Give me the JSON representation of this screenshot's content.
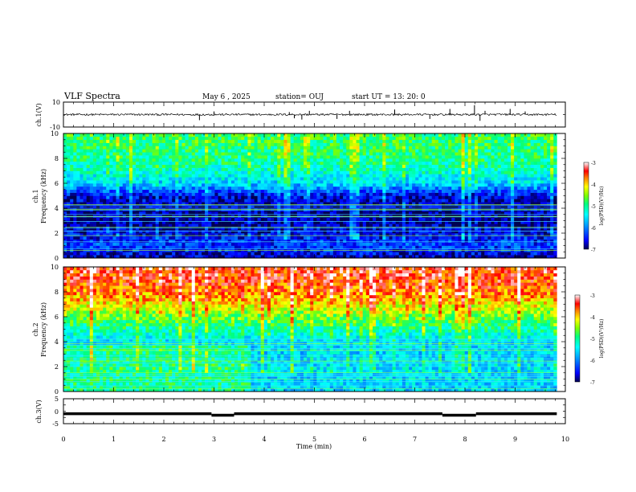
{
  "header": {
    "title": "VLF Spectra",
    "date": "May 6  , 2025",
    "station": "station= OUJ",
    "start": "start  UT  =   13: 20: 0"
  },
  "chart_data": [
    {
      "type": "line",
      "name": "ch1-waveform",
      "ylabel": "ch.1(V)",
      "ylim": [
        -10,
        10
      ],
      "yticks": [
        "10",
        "-10"
      ],
      "xlim": [
        0,
        10
      ],
      "baseline": 0,
      "noise_amplitude": 0.8,
      "spikes": [
        {
          "t": 2.71,
          "v": -4.5
        },
        {
          "t": 3.0,
          "v": 2.5
        },
        {
          "t": 4.5,
          "v": 2.0
        },
        {
          "t": 4.6,
          "v": -3.0
        },
        {
          "t": 4.75,
          "v": -4.0
        },
        {
          "t": 4.9,
          "v": 3.0
        },
        {
          "t": 5.45,
          "v": -3.5
        },
        {
          "t": 5.7,
          "v": 3.0
        },
        {
          "t": 6.6,
          "v": 4.0
        },
        {
          "t": 7.3,
          "v": -3.5
        },
        {
          "t": 7.7,
          "v": 4.5
        },
        {
          "t": 8.19,
          "v": 7.5
        },
        {
          "t": 8.3,
          "v": -5.0
        },
        {
          "t": 8.4,
          "v": 3.0
        },
        {
          "t": 8.9,
          "v": 4.5
        },
        {
          "t": 9.2,
          "v": 2.5
        }
      ]
    },
    {
      "type": "heatmap",
      "name": "ch1-spectrogram",
      "ylabel_line1": "ch.1",
      "ylabel_line2": "Frequency  (kHz)",
      "ylim": [
        0,
        10
      ],
      "yticks": [
        "0",
        "2",
        "4",
        "6",
        "8",
        "10"
      ],
      "xlim": [
        0,
        10
      ],
      "colorbar_label": "log(PSD)(V²/Hz)",
      "colorbar_ticks": [
        "-3",
        "-4",
        "-5",
        "-6",
        "-7"
      ],
      "colorbar_range": [
        -7,
        -3
      ],
      "psd_profile_khz": [
        0,
        1,
        2,
        3,
        4,
        5,
        6,
        7,
        8,
        9,
        10
      ],
      "psd_profile_log": [
        -6.8,
        -6.3,
        -6.6,
        -6.9,
        -6.8,
        -6.6,
        -5.6,
        -5.2,
        -5.0,
        -4.9,
        -4.8
      ],
      "hum_lines_khz": [
        0.6,
        0.75,
        1.3,
        1.8,
        2.15,
        2.4,
        2.5,
        2.95,
        3.3,
        3.35,
        3.5,
        3.85,
        3.9,
        4.0,
        4.2,
        4.3
      ],
      "data_end_min": 9.83
    },
    {
      "type": "heatmap",
      "name": "ch2-spectrogram",
      "ylabel_line1": "ch.2",
      "ylabel_line2": "Frequency  (kHz)",
      "ylim": [
        0,
        10
      ],
      "yticks": [
        "0",
        "2",
        "4",
        "6",
        "8",
        "10"
      ],
      "xlim": [
        0,
        10
      ],
      "colorbar_label": "log(PSD)(V²/Hz)",
      "colorbar_ticks": [
        "-3",
        "-4",
        "-5",
        "-6",
        "-7"
      ],
      "colorbar_range": [
        -7,
        -3
      ],
      "psd_profile_khz": [
        0,
        1,
        2,
        3,
        4,
        5,
        6,
        7,
        8,
        9,
        10
      ],
      "psd_profile_log": [
        -5.6,
        -5.6,
        -5.5,
        -5.6,
        -5.5,
        -5.1,
        -4.6,
        -4.1,
        -3.7,
        -3.5,
        -3.4
      ],
      "hum_lines_khz": [
        0.25,
        0.45,
        0.8,
        1.0,
        1.2,
        1.35,
        1.5,
        2.0,
        2.3,
        2.45,
        2.6,
        2.85,
        3.3,
        3.45,
        3.7,
        3.85,
        4.0,
        4.2
      ],
      "enhanced_until_min": 3.7,
      "data_end_min": 9.83
    },
    {
      "type": "line",
      "name": "ch3-trace",
      "ylabel": "ch.3(V)",
      "ylim": [
        -5,
        5
      ],
      "yticks": [
        "5",
        "0",
        "-5"
      ],
      "xlim": [
        0,
        10
      ],
      "segments": [
        {
          "t0": 0,
          "t1": 2.95,
          "v": -1.0
        },
        {
          "t0": 2.95,
          "t1": 3.4,
          "v": -1.6
        },
        {
          "t0": 3.4,
          "t1": 7.55,
          "v": -1.0
        },
        {
          "t0": 7.55,
          "t1": 8.22,
          "v": -1.6
        },
        {
          "t0": 8.22,
          "t1": 9.83,
          "v": -1.0
        }
      ]
    }
  ],
  "xaxis": {
    "label": "Time  (min)",
    "ticks": [
      "0",
      "1",
      "2",
      "3",
      "4",
      "5",
      "6",
      "7",
      "8",
      "9",
      "10"
    ]
  },
  "colors": {
    "ink": "#000000",
    "colormap": [
      "#000050",
      "#0000ff",
      "#00a0ff",
      "#00ffff",
      "#00ff80",
      "#80ff00",
      "#ffff00",
      "#ff8000",
      "#ff0000",
      "#ffffff"
    ]
  }
}
